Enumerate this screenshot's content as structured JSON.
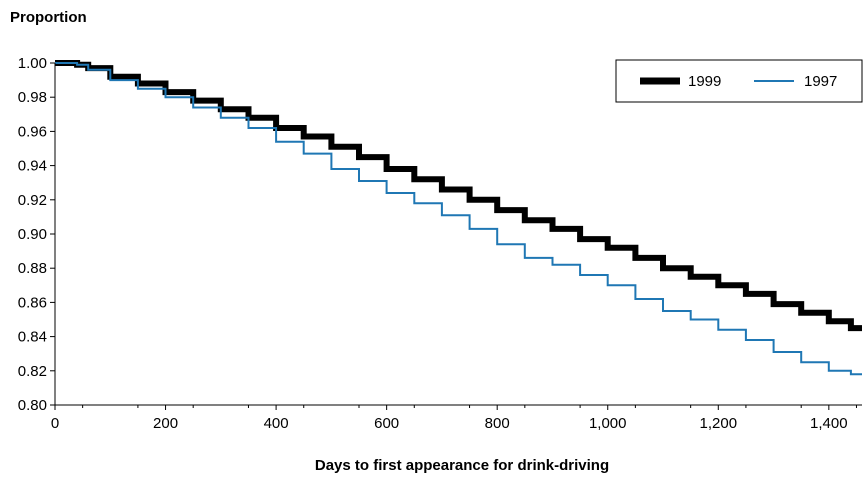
{
  "chart_data": {
    "type": "line",
    "title": "",
    "ylabel": "Proportion",
    "xlabel": "Days to first appearance for drink-driving",
    "xlim": [
      0,
      1460
    ],
    "ylim": [
      0.8,
      1.0
    ],
    "x_ticks": [
      0,
      200,
      400,
      600,
      800,
      1000,
      1200,
      1400
    ],
    "x_tick_labels": [
      "0",
      "200",
      "400",
      "600",
      "800",
      "1,000",
      "1,200",
      "1,400"
    ],
    "y_ticks": [
      0.8,
      0.82,
      0.84,
      0.86,
      0.88,
      0.9,
      0.92,
      0.94,
      0.96,
      0.98,
      1.0
    ],
    "y_tick_labels": [
      "0.80",
      "0.82",
      "0.84",
      "0.86",
      "0.88",
      "0.90",
      "0.92",
      "0.94",
      "0.96",
      "0.98",
      "1.00"
    ],
    "grid": false,
    "legend_position": "top-right",
    "series": [
      {
        "name": "1999",
        "color": "#000000",
        "points": [
          [
            0,
            1.0
          ],
          [
            40,
            0.999
          ],
          [
            60,
            0.997
          ],
          [
            100,
            0.992
          ],
          [
            150,
            0.988
          ],
          [
            200,
            0.983
          ],
          [
            250,
            0.978
          ],
          [
            300,
            0.973
          ],
          [
            350,
            0.968
          ],
          [
            400,
            0.962
          ],
          [
            450,
            0.957
          ],
          [
            500,
            0.951
          ],
          [
            550,
            0.945
          ],
          [
            600,
            0.938
          ],
          [
            650,
            0.932
          ],
          [
            700,
            0.926
          ],
          [
            750,
            0.92
          ],
          [
            800,
            0.914
          ],
          [
            850,
            0.908
          ],
          [
            900,
            0.903
          ],
          [
            950,
            0.897
          ],
          [
            1000,
            0.892
          ],
          [
            1050,
            0.886
          ],
          [
            1100,
            0.88
          ],
          [
            1150,
            0.875
          ],
          [
            1200,
            0.87
          ],
          [
            1250,
            0.865
          ],
          [
            1300,
            0.859
          ],
          [
            1350,
            0.854
          ],
          [
            1400,
            0.849
          ],
          [
            1440,
            0.845
          ],
          [
            1460,
            0.845
          ]
        ]
      },
      {
        "name": "1997",
        "color": "#1f77b4",
        "points": [
          [
            0,
            1.0
          ],
          [
            40,
            0.999
          ],
          [
            60,
            0.996
          ],
          [
            100,
            0.99
          ],
          [
            150,
            0.985
          ],
          [
            200,
            0.98
          ],
          [
            250,
            0.974
          ],
          [
            300,
            0.968
          ],
          [
            350,
            0.962
          ],
          [
            400,
            0.954
          ],
          [
            450,
            0.947
          ],
          [
            500,
            0.938
          ],
          [
            550,
            0.931
          ],
          [
            600,
            0.924
          ],
          [
            650,
            0.918
          ],
          [
            700,
            0.911
          ],
          [
            750,
            0.903
          ],
          [
            800,
            0.894
          ],
          [
            850,
            0.886
          ],
          [
            900,
            0.882
          ],
          [
            950,
            0.876
          ],
          [
            1000,
            0.87
          ],
          [
            1050,
            0.862
          ],
          [
            1100,
            0.855
          ],
          [
            1150,
            0.85
          ],
          [
            1200,
            0.844
          ],
          [
            1250,
            0.838
          ],
          [
            1300,
            0.831
          ],
          [
            1350,
            0.825
          ],
          [
            1400,
            0.82
          ],
          [
            1440,
            0.818
          ],
          [
            1460,
            0.818
          ]
        ]
      }
    ]
  }
}
